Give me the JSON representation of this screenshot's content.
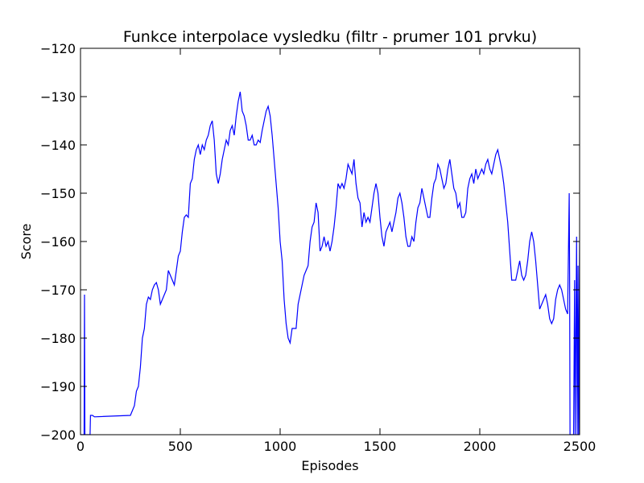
{
  "chart_data": {
    "type": "line",
    "title": "Funkce interpolace vysledku  (filtr - prumer 101 prvku)",
    "xlabel": "Episodes",
    "ylabel": "Score",
    "xlim": [
      0,
      2500
    ],
    "ylim": [
      -200,
      -120
    ],
    "xticks": [
      0,
      500,
      1000,
      1500,
      2000,
      2500
    ],
    "yticks": [
      {
        "value": -200,
        "label": "−200"
      },
      {
        "value": -190,
        "label": "−190"
      },
      {
        "value": -180,
        "label": "−180"
      },
      {
        "value": -170,
        "label": "−170"
      },
      {
        "value": -160,
        "label": "−160"
      },
      {
        "value": -150,
        "label": "−150"
      },
      {
        "value": -140,
        "label": "−140"
      },
      {
        "value": -130,
        "label": "−130"
      },
      {
        "value": -120,
        "label": "−120"
      }
    ],
    "x": [
      0,
      18,
      20,
      22,
      48,
      50,
      60,
      70,
      250,
      260,
      270,
      280,
      290,
      300,
      310,
      320,
      330,
      340,
      350,
      360,
      370,
      380,
      390,
      400,
      410,
      420,
      430,
      440,
      450,
      460,
      470,
      480,
      490,
      500,
      510,
      520,
      530,
      540,
      550,
      560,
      570,
      580,
      590,
      600,
      610,
      620,
      630,
      640,
      650,
      660,
      670,
      680,
      690,
      700,
      710,
      720,
      730,
      740,
      750,
      760,
      770,
      780,
      790,
      800,
      810,
      820,
      830,
      840,
      850,
      860,
      870,
      880,
      890,
      900,
      910,
      920,
      930,
      940,
      950,
      960,
      970,
      980,
      990,
      1000,
      1010,
      1020,
      1030,
      1040,
      1050,
      1060,
      1070,
      1080,
      1090,
      1100,
      1110,
      1120,
      1130,
      1140,
      1150,
      1160,
      1170,
      1180,
      1190,
      1200,
      1210,
      1220,
      1230,
      1240,
      1250,
      1260,
      1270,
      1280,
      1290,
      1300,
      1310,
      1320,
      1330,
      1340,
      1350,
      1360,
      1370,
      1380,
      1390,
      1400,
      1410,
      1420,
      1430,
      1440,
      1450,
      1460,
      1470,
      1480,
      1490,
      1500,
      1510,
      1520,
      1530,
      1540,
      1550,
      1560,
      1570,
      1580,
      1590,
      1600,
      1610,
      1620,
      1630,
      1640,
      1650,
      1660,
      1670,
      1680,
      1690,
      1700,
      1710,
      1720,
      1730,
      1740,
      1750,
      1760,
      1770,
      1780,
      1790,
      1800,
      1810,
      1820,
      1830,
      1840,
      1850,
      1860,
      1870,
      1880,
      1890,
      1900,
      1910,
      1920,
      1930,
      1940,
      1950,
      1960,
      1970,
      1980,
      1990,
      2000,
      2010,
      2020,
      2030,
      2040,
      2050,
      2060,
      2070,
      2080,
      2090,
      2100,
      2110,
      2120,
      2130,
      2140,
      2150,
      2160,
      2170,
      2180,
      2190,
      2200,
      2210,
      2220,
      2230,
      2240,
      2250,
      2260,
      2270,
      2280,
      2290,
      2300,
      2310,
      2320,
      2330,
      2340,
      2350,
      2360,
      2370,
      2380,
      2390,
      2400,
      2410,
      2420,
      2430,
      2440,
      2448,
      2450,
      2452,
      2470,
      2475,
      2478,
      2485,
      2488,
      2492,
      2495,
      2500
    ],
    "series": [
      {
        "name": "Score",
        "color": "#0000ff",
        "values": [
          -200,
          -200,
          -171,
          -200,
          -200,
          -196,
          -196,
          -196.3,
          -196,
          -195,
          -194,
          -191,
          -190,
          -186,
          -180,
          -178,
          -173,
          -171.5,
          -172,
          -170,
          -169,
          -168.5,
          -170,
          -173,
          -172,
          -171,
          -170,
          -166,
          -167,
          -168,
          -169,
          -166,
          -163,
          -162,
          -158,
          -155,
          -154.5,
          -155,
          -148,
          -147,
          -143,
          -141,
          -140,
          -142,
          -140,
          -141,
          -139,
          -138,
          -136,
          -135,
          -139,
          -146,
          -148,
          -146,
          -143,
          -141,
          -139,
          -140,
          -137,
          -136,
          -138,
          -134,
          -131,
          -129,
          -133,
          -134,
          -136,
          -139,
          -139,
          -138,
          -140,
          -140,
          -139,
          -139.5,
          -137,
          -135,
          -133,
          -132,
          -134,
          -138,
          -143,
          -148,
          -153,
          -160,
          -164,
          -172,
          -177,
          -180,
          -181,
          -178,
          -178,
          -178,
          -173,
          -171,
          -169,
          -167,
          -166,
          -165,
          -160,
          -157,
          -156,
          -152,
          -154,
          -162,
          -161,
          -159,
          -161,
          -160,
          -162,
          -160,
          -157,
          -153,
          -148,
          -149,
          -148,
          -149,
          -147,
          -144,
          -145,
          -146,
          -143,
          -148,
          -151,
          -152,
          -157,
          -154,
          -156,
          -155,
          -156,
          -153,
          -150,
          -148,
          -150,
          -155,
          -159,
          -161,
          -158,
          -157,
          -156,
          -158,
          -156,
          -154,
          -151,
          -150,
          -152,
          -155,
          -159,
          -161,
          -161,
          -159,
          -160,
          -156,
          -153,
          -152,
          -149,
          -151,
          -153,
          -155,
          -155,
          -151,
          -148,
          -147,
          -144,
          -145,
          -147,
          -149,
          -148,
          -145,
          -143,
          -146,
          -149,
          -150,
          -153,
          -152,
          -155,
          -155,
          -154,
          -149,
          -147,
          -146,
          -148,
          -145,
          -147,
          -146,
          -145,
          -146,
          -144,
          -143,
          -145,
          -146,
          -144,
          -142,
          -141,
          -143,
          -145,
          -148,
          -152,
          -156,
          -162,
          -168,
          -168,
          -168,
          -166,
          -164,
          -167,
          -168,
          -167,
          -164,
          -160,
          -158,
          -160,
          -164,
          -169,
          -174,
          -173,
          -172,
          -171,
          -173,
          -176,
          -177,
          -176,
          -172,
          -170,
          -169,
          -170,
          -172,
          -174,
          -175,
          -150,
          -167,
          -200,
          -200,
          -168,
          -200,
          -159,
          -200,
          -165,
          -200,
          -160
        ]
      }
    ]
  }
}
